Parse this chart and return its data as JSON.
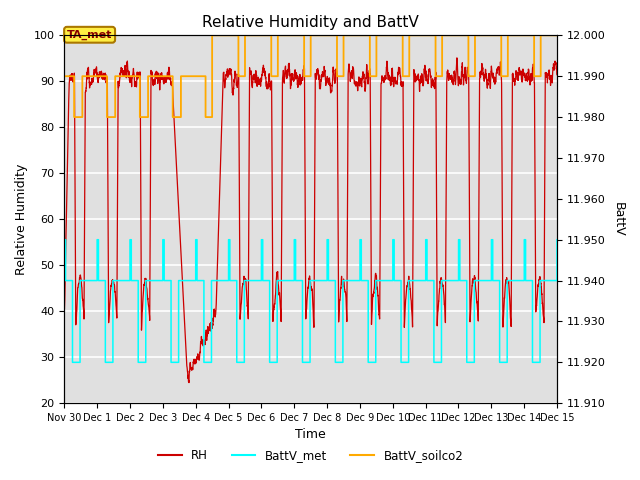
{
  "title": "Relative Humidity and BattV",
  "xlabel": "Time",
  "ylabel_left": "Relative Humidity",
  "ylabel_right": "BattV",
  "ylim_left": [
    20,
    100
  ],
  "ylim_right": [
    11.91,
    12.0
  ],
  "yticks_right": [
    11.91,
    11.92,
    11.93,
    11.94,
    11.95,
    11.96,
    11.97,
    11.98,
    11.99,
    12.0
  ],
  "yticks_left": [
    20,
    30,
    40,
    50,
    60,
    70,
    80,
    90,
    100
  ],
  "xtick_labels": [
    "Nov 30",
    "Dec 1",
    "Dec 2",
    "Dec 3",
    "Dec 4",
    "Dec 5",
    "Dec 6",
    "Dec 7",
    "Dec 8",
    "Dec 9",
    "Dec 10",
    "Dec 11",
    "Dec 12",
    "Dec 13",
    "Dec 14",
    "Dec 15"
  ],
  "color_RH": "#cc0000",
  "color_BattV_met": "#00ffff",
  "color_BattV_soilco2": "#ffaa00",
  "annotation_text": "TA_met",
  "bg_color": "#e0e0e0",
  "grid_color": "white"
}
